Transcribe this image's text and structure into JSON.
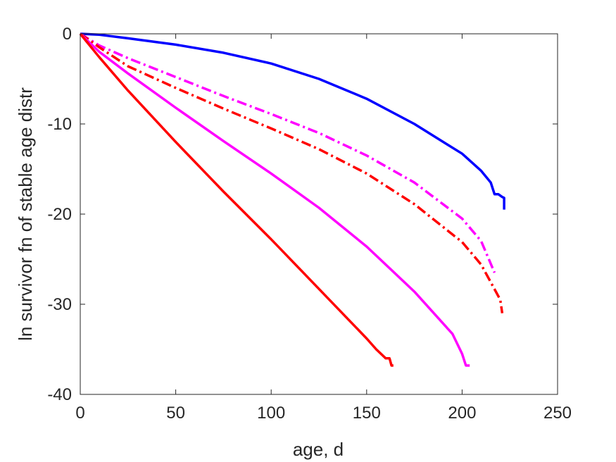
{
  "chart_data": {
    "type": "line",
    "title": "",
    "xlabel": "age, d",
    "ylabel": "ln survivor fn of stable age distr",
    "xlim": [
      0,
      250
    ],
    "ylim": [
      -40,
      0
    ],
    "xticks": [
      0,
      50,
      100,
      150,
      200,
      250
    ],
    "yticks": [
      0,
      -10,
      -20,
      -30,
      -40
    ],
    "xtick_labels": [
      "0",
      "50",
      "100",
      "150",
      "200",
      "250"
    ],
    "ytick_labels": [
      "0",
      "-10",
      "-20",
      "-30",
      "-40"
    ],
    "grid": false,
    "series": [
      {
        "color": "#0000ff",
        "style": "solid",
        "x": [
          0,
          10,
          25,
          50,
          75,
          100,
          125,
          150,
          175,
          200,
          210,
          215,
          217,
          219,
          221,
          222,
          222
        ],
        "y": [
          0,
          -0.1,
          -0.5,
          -1.2,
          -2.1,
          -3.3,
          -5.0,
          -7.2,
          -10.0,
          -13.3,
          -15.2,
          -16.5,
          -17.8,
          -17.8,
          -18.1,
          -18.2,
          -19.5
        ]
      },
      {
        "color": "#ff00ff",
        "style": "dashdot",
        "x": [
          0,
          10,
          25,
          50,
          75,
          100,
          125,
          150,
          175,
          200,
          210,
          217
        ],
        "y": [
          0,
          -1.3,
          -2.7,
          -4.8,
          -6.9,
          -8.9,
          -11.0,
          -13.5,
          -16.5,
          -20.5,
          -23.0,
          -26.5
        ]
      },
      {
        "color": "#ff0000",
        "style": "dashdot",
        "x": [
          0,
          10,
          25,
          50,
          75,
          100,
          125,
          150,
          175,
          200,
          210,
          220,
          221
        ],
        "y": [
          0,
          -1.5,
          -3.6,
          -6.0,
          -8.3,
          -10.5,
          -12.8,
          -15.5,
          -18.9,
          -23.1,
          -25.6,
          -29.5,
          -31.0
        ]
      },
      {
        "color": "#ff00ff",
        "style": "solid",
        "x": [
          0,
          10,
          25,
          50,
          75,
          100,
          125,
          150,
          175,
          195,
          200,
          202,
          204
        ],
        "y": [
          0,
          -2.0,
          -4.4,
          -8.2,
          -11.9,
          -15.5,
          -19.3,
          -23.6,
          -28.6,
          -33.3,
          -35.5,
          -36.8,
          -36.8
        ]
      },
      {
        "color": "#ff0000",
        "style": "solid",
        "x": [
          0,
          10,
          25,
          50,
          75,
          100,
          125,
          150,
          155,
          160,
          162,
          163,
          164
        ],
        "y": [
          0,
          -2.6,
          -6.3,
          -12.0,
          -17.5,
          -22.8,
          -28.3,
          -33.8,
          -35.0,
          -36.0,
          -36.0,
          -36.8,
          -36.8
        ]
      }
    ]
  }
}
